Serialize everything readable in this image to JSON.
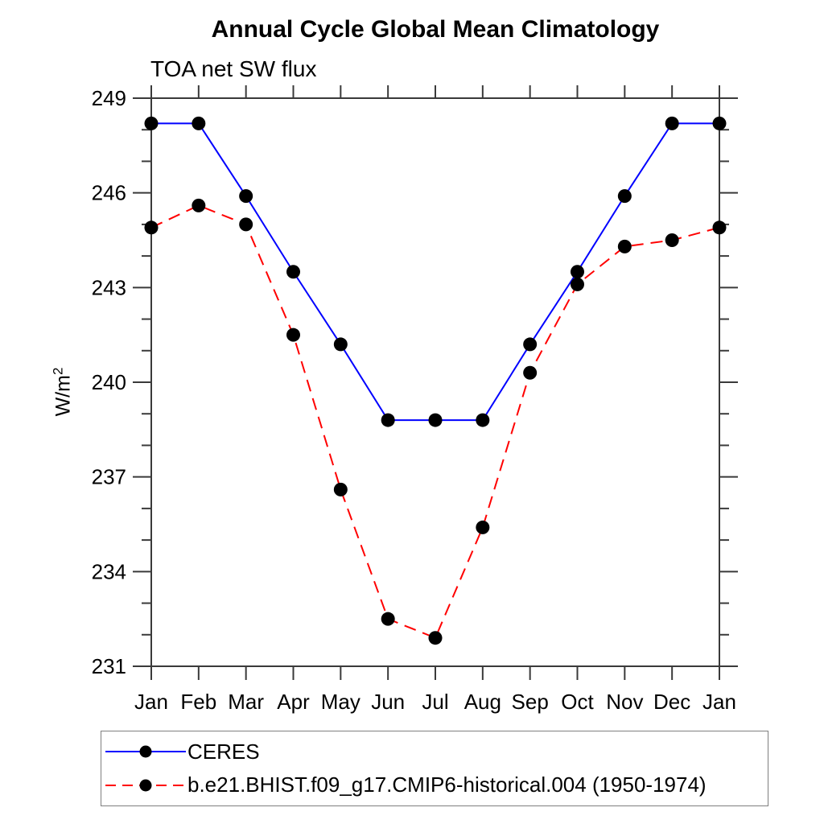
{
  "chart_data": {
    "type": "line",
    "title": "Annual Cycle Global Mean Climatology",
    "subtitle": "TOA net SW flux",
    "ylabel": "W/m²",
    "ylabel_main": "W/m",
    "ylabel_sup": "2",
    "xlabel": "",
    "categories": [
      "Jan",
      "Feb",
      "Mar",
      "Apr",
      "May",
      "Jun",
      "Jul",
      "Aug",
      "Sep",
      "Oct",
      "Nov",
      "Dec",
      "Jan"
    ],
    "ylim": [
      231,
      249
    ],
    "yticks_major": [
      231,
      234,
      237,
      240,
      243,
      246,
      249
    ],
    "ytick_minor_step": 1,
    "grid": false,
    "series": [
      {
        "name": "CERES",
        "color": "#0000ff",
        "line_style": "solid",
        "marker": "filled-circle",
        "marker_color": "#000000",
        "values": [
          248.2,
          248.2,
          245.9,
          243.5,
          241.2,
          238.8,
          238.8,
          238.8,
          241.2,
          243.5,
          245.9,
          248.2,
          248.2
        ]
      },
      {
        "name": "b.e21.BHIST.f09_g17.CMIP6-historical.004 (1950-1974)",
        "color": "#ff0000",
        "line_style": "dashed",
        "marker": "filled-circle",
        "marker_color": "#000000",
        "values": [
          244.9,
          245.6,
          245.0,
          241.5,
          236.6,
          232.5,
          231.9,
          235.4,
          240.3,
          243.1,
          244.3,
          244.5,
          244.9
        ]
      }
    ],
    "legend_position": "bottom-left"
  },
  "style": {
    "axis_color": "#3a3a3a",
    "text_color": "#000000",
    "background": "#ffffff",
    "legend_border_color": "#7f7f7f"
  }
}
